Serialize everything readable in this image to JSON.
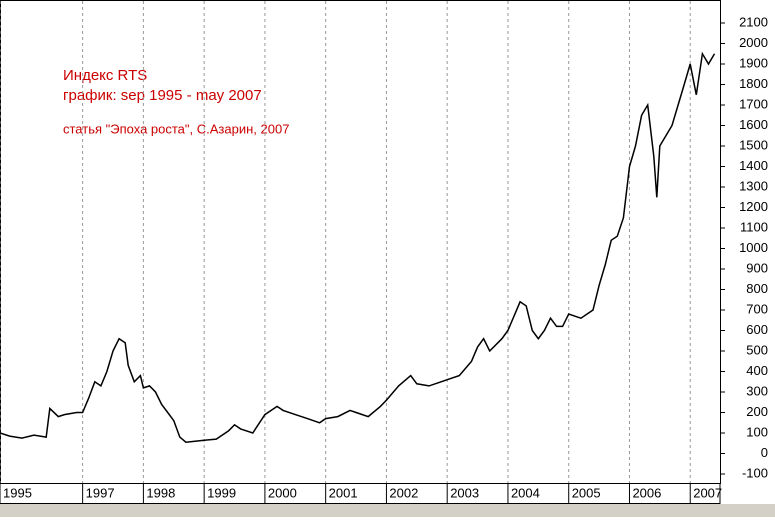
{
  "chart_data": {
    "type": "line",
    "annotations": [
      "Индекс RTS",
      "график: sep 1995 - may 2007",
      "статья \"Эпоха роста\", С.Азарин, 2007"
    ],
    "x": [
      1995.64,
      1995.8,
      1996.0,
      1996.2,
      1996.4,
      1996.46,
      1996.6,
      1996.7,
      1996.9,
      1997.0,
      1997.1,
      1997.2,
      1997.3,
      1997.4,
      1997.5,
      1997.6,
      1997.7,
      1997.75,
      1997.85,
      1997.95,
      1998.0,
      1998.1,
      1998.2,
      1998.3,
      1998.4,
      1998.5,
      1998.6,
      1998.7,
      1998.85,
      1999.0,
      1999.2,
      1999.4,
      1999.5,
      1999.6,
      1999.8,
      2000.0,
      2000.2,
      2000.3,
      2000.5,
      2000.7,
      2000.9,
      2001.0,
      2001.2,
      2001.4,
      2001.5,
      2001.7,
      2001.9,
      2002.0,
      2002.2,
      2002.4,
      2002.5,
      2002.7,
      2002.9,
      2003.0,
      2003.2,
      2003.4,
      2003.5,
      2003.6,
      2003.7,
      2003.9,
      2004.0,
      2004.2,
      2004.3,
      2004.4,
      2004.5,
      2004.6,
      2004.7,
      2004.8,
      2004.9,
      2005.0,
      2005.2,
      2005.4,
      2005.5,
      2005.6,
      2005.7,
      2005.8,
      2005.9,
      2006.0,
      2006.1,
      2006.2,
      2006.3,
      2006.4,
      2006.45,
      2006.5,
      2006.6,
      2006.7,
      2006.8,
      2006.9,
      2007.0,
      2007.1,
      2007.2,
      2007.3,
      2007.4
    ],
    "series": [
      {
        "color": "#000000",
        "values": [
          100,
          85,
          75,
          90,
          80,
          220,
          180,
          190,
          200,
          200,
          270,
          350,
          330,
          400,
          500,
          560,
          540,
          430,
          350,
          380,
          320,
          330,
          300,
          240,
          200,
          160,
          80,
          55,
          60,
          65,
          70,
          110,
          140,
          120,
          100,
          190,
          230,
          210,
          190,
          170,
          150,
          170,
          180,
          210,
          200,
          180,
          230,
          260,
          330,
          380,
          340,
          330,
          350,
          360,
          380,
          450,
          520,
          560,
          500,
          560,
          600,
          740,
          720,
          600,
          560,
          600,
          660,
          620,
          620,
          680,
          660,
          700,
          820,
          920,
          1040,
          1060,
          1150,
          1400,
          1500,
          1650,
          1700,
          1450,
          1250,
          1500,
          1550,
          1600,
          1700,
          1800,
          1900,
          1750,
          1950,
          1900,
          1950
        ]
      }
    ],
    "xlim": [
      1995.64,
      2007.49
    ],
    "xticks": [
      {
        "value": 1995.64,
        "label": "1995"
      },
      1997,
      1998,
      1999,
      2000,
      2001,
      2002,
      2003,
      2004,
      2005,
      2006,
      2007
    ],
    "ylim": [
      -100,
      2100
    ],
    "yticks": [
      -100,
      0,
      100,
      200,
      300,
      400,
      500,
      600,
      700,
      800,
      900,
      1000,
      1100,
      1200,
      1300,
      1400,
      1500,
      1600,
      1700,
      1800,
      1900,
      2000,
      2100
    ],
    "grid": true,
    "annotation_color": "#cc0000"
  }
}
